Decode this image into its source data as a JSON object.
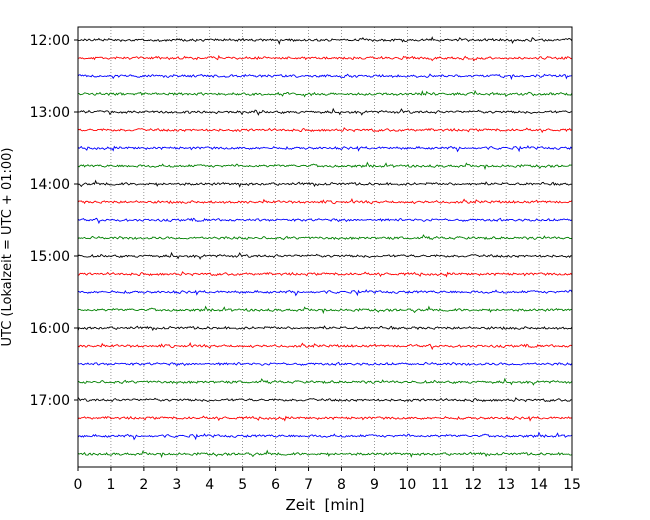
{
  "chart_data": {
    "type": "line",
    "title": "",
    "xlabel": "Zeit  [min]",
    "ylabel": "UTC (Lokalzeit = UTC + 01:00)",
    "xlim": [
      0,
      15
    ],
    "x_ticks": [
      "0",
      "1",
      "2",
      "3",
      "4",
      "5",
      "6",
      "7",
      "8",
      "9",
      "10",
      "11",
      "12",
      "13",
      "14",
      "15"
    ],
    "y_ticks": [
      "12:00",
      "13:00",
      "14:00",
      "15:00",
      "16:00",
      "17:00"
    ],
    "row_start": "12:00",
    "row_interval_minutes": 15,
    "row_count": 24,
    "trace_colors": [
      "#000000",
      "#ff0000",
      "#0000ff",
      "#008000"
    ],
    "grid": "vertical dotted at each minute"
  }
}
